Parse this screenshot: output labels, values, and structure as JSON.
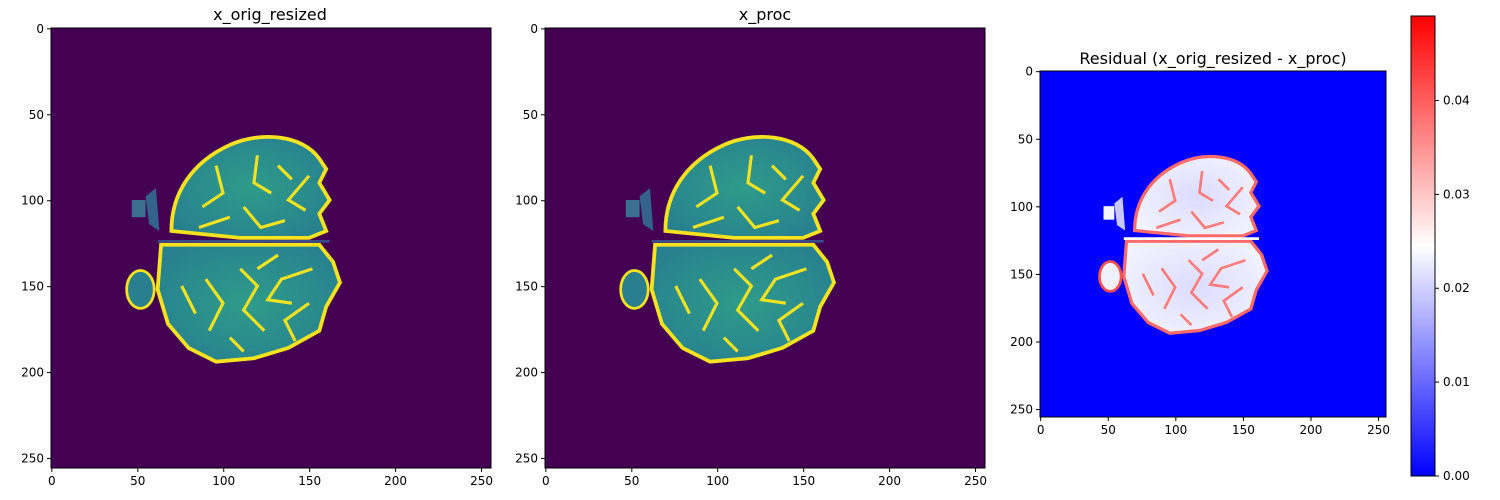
{
  "chart_data": [
    {
      "type": "heatmap",
      "title": "x_orig_resized",
      "xlim": [
        0,
        255
      ],
      "ylim": [
        255,
        0
      ],
      "xticks": [
        0,
        50,
        100,
        150,
        200,
        250
      ],
      "yticks": [
        0,
        50,
        100,
        150,
        200,
        250
      ],
      "colormap": "viridis",
      "colors": {
        "background": "#440154",
        "tissue": "#2a8f8c",
        "bright": "#f5e31f"
      },
      "image": "axial brain MRI slice"
    },
    {
      "type": "heatmap",
      "title": "x_proc",
      "xlim": [
        0,
        255
      ],
      "ylim": [
        255,
        0
      ],
      "xticks": [
        0,
        50,
        100,
        150,
        200,
        250
      ],
      "yticks": [
        0,
        50,
        100,
        150,
        200,
        250
      ],
      "colormap": "viridis",
      "colors": {
        "background": "#440154",
        "tissue": "#2a8f8c",
        "bright": "#f5e31f"
      },
      "image": "axial brain MRI slice"
    },
    {
      "type": "heatmap",
      "title": "Residual (x_orig_resized - x_proc)",
      "xlim": [
        0,
        255
      ],
      "ylim": [
        255,
        0
      ],
      "xticks": [
        0,
        50,
        100,
        150,
        200,
        250
      ],
      "yticks": [
        0,
        50,
        100,
        150,
        200,
        250
      ],
      "colormap": "bwr",
      "colors": {
        "background": "#0000ff",
        "mid": "#ffffff",
        "high": "#ff0000"
      },
      "colorbar": {
        "min": 0.0,
        "max": 0.049,
        "ticks": [
          "0.00",
          "0.01",
          "0.02",
          "0.03",
          "0.04"
        ]
      }
    }
  ]
}
